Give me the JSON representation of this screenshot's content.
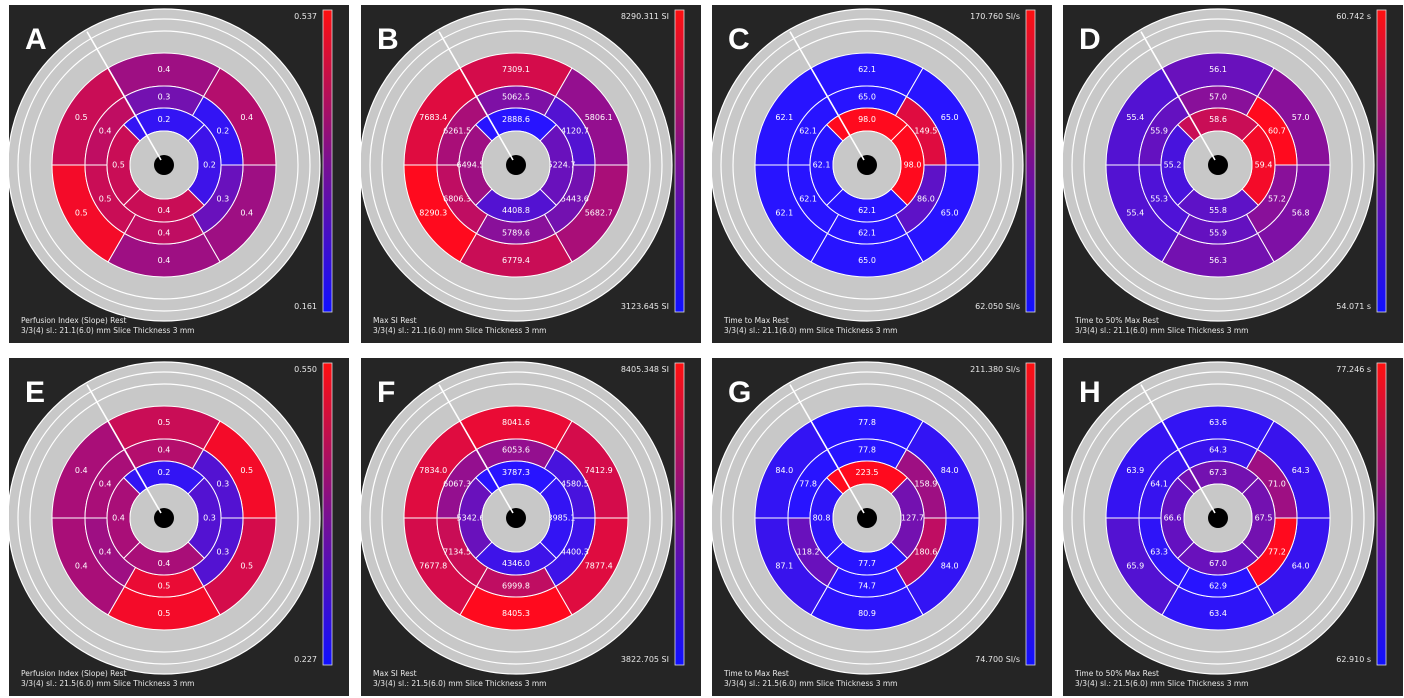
{
  "chart_data": [
    {
      "type": "heatmap",
      "letter": "A",
      "cbar_max": "0.537",
      "cbar_min": "0.161",
      "footer_line1": "Perfusion Index (Slope) Rest",
      "footer_line2": "3/3(4) sl.: 21.1(6.0) mm Slice Thickness 3 mm",
      "outer": [
        "0.4",
        "0.4",
        "0.4",
        "0.4",
        "0.5",
        "0.5"
      ],
      "mid": [
        "0.3",
        "0.2",
        "0.3",
        "0.4",
        "0.5",
        "0.4"
      ],
      "inner": [
        "0.2",
        "0.2",
        "0.4",
        "0.5"
      ],
      "outer_c": [
        0.55,
        0.65,
        0.55,
        0.55,
        0.95,
        0.75
      ],
      "mid_c": [
        0.35,
        0.05,
        0.3,
        0.7,
        0.75,
        0.7
      ],
      "inner_c": [
        0.05,
        0.1,
        0.75,
        0.75
      ]
    },
    {
      "type": "heatmap",
      "letter": "B",
      "cbar_max": "8290.311 SI",
      "cbar_min": "3123.645 SI",
      "footer_line1": "Max SI Rest",
      "footer_line2": "3/3(4) sl.: 21.1(6.0) mm Slice Thickness 3 mm",
      "outer": [
        "7309.1",
        "5806.1",
        "5682.7",
        "6779.4",
        "8290.3",
        "7683.4"
      ],
      "mid": [
        "5062.5",
        "4120.7",
        "5443.6",
        "5789.6",
        "6806.3",
        "6261.5"
      ],
      "inner": [
        "2888.6",
        "5224.7",
        "4408.8",
        "6494.5"
      ],
      "outer_c": [
        0.8,
        0.5,
        0.6,
        0.75,
        1.0,
        0.85
      ],
      "mid_c": [
        0.4,
        0.2,
        0.35,
        0.45,
        0.7,
        0.6
      ],
      "inner_c": [
        0.0,
        0.3,
        0.2,
        0.55
      ]
    },
    {
      "type": "heatmap",
      "letter": "C",
      "cbar_max": "170.760 SI/s",
      "cbar_min": "62.050 SI/s",
      "footer_line1": "Time to Max Rest",
      "footer_line2": "3/3(4) sl.: 21.1(6.0) mm Slice Thickness 3 mm",
      "outer": [
        "62.1",
        "65.0",
        "65.0",
        "65.0",
        "62.1",
        "62.1"
      ],
      "mid": [
        "65.0",
        "149.5",
        "86.0",
        "62.1",
        "62.1",
        "62.1"
      ],
      "inner": [
        "98.0",
        "98.0",
        "62.1",
        "62.1"
      ],
      "outer_c": [
        0.0,
        0.0,
        0.0,
        0.0,
        0.0,
        0.0
      ],
      "mid_c": [
        0.0,
        0.85,
        0.25,
        0.0,
        0.0,
        0.0
      ],
      "inner_c": [
        1.0,
        1.0,
        0.0,
        0.0
      ]
    },
    {
      "type": "heatmap",
      "letter": "D",
      "cbar_max": "60.742 s",
      "cbar_min": "54.071 s",
      "footer_line1": "Time to 50% Max Rest",
      "footer_line2": "3/3(4) sl.: 21.1(6.0) mm Slice Thickness 3 mm",
      "outer": [
        "56.1",
        "57.0",
        "56.8",
        "56.3",
        "55.4",
        "55.4"
      ],
      "mid": [
        "57.0",
        "60.7",
        "57.2",
        "55.9",
        "55.3",
        "55.9"
      ],
      "inner": [
        "58.6",
        "59.4",
        "55.8",
        "55.2"
      ],
      "outer_c": [
        0.3,
        0.45,
        0.4,
        0.35,
        0.2,
        0.2
      ],
      "mid_c": [
        0.45,
        1.0,
        0.45,
        0.28,
        0.18,
        0.28
      ],
      "inner_c": [
        0.75,
        0.95,
        0.25,
        0.15
      ]
    },
    {
      "type": "heatmap",
      "letter": "E",
      "cbar_max": "0.550",
      "cbar_min": "0.227",
      "footer_line1": "Perfusion Index (Slope) Rest",
      "footer_line2": "3/3(4) sl.: 21.5(6.0) mm Slice Thickness 3 mm",
      "outer": [
        "0.5",
        "0.5",
        "0.5",
        "0.5",
        "0.4",
        "0.4"
      ],
      "mid": [
        "0.4",
        "0.3",
        "0.3",
        "0.5",
        "0.4",
        "0.4"
      ],
      "inner": [
        "0.2",
        "0.3",
        "0.4",
        "0.4"
      ],
      "outer_c": [
        0.75,
        0.95,
        0.8,
        0.95,
        0.6,
        0.6
      ],
      "mid_c": [
        0.65,
        0.2,
        0.2,
        0.9,
        0.55,
        0.6
      ],
      "inner_c": [
        0.05,
        0.2,
        0.6,
        0.6
      ]
    },
    {
      "type": "heatmap",
      "letter": "F",
      "cbar_max": "8405.348 SI",
      "cbar_min": "3822.705 SI",
      "footer_line1": "Max SI Rest",
      "footer_line2": "3/3(4) sl.: 21.5(6.0) mm Slice Thickness 3 mm",
      "outer": [
        "8041.6",
        "7412.9",
        "7877.4",
        "8405.3",
        "7677.8",
        "7834.0"
      ],
      "mid": [
        "6053.6",
        "4580.5",
        "4400.3",
        "6999.8",
        "7134.5",
        "6067.3"
      ],
      "inner": [
        "3787.3",
        "3985.1",
        "4346.0",
        "5342.6"
      ],
      "outer_c": [
        0.9,
        0.8,
        0.85,
        1.0,
        0.8,
        0.85
      ],
      "mid_c": [
        0.5,
        0.15,
        0.1,
        0.7,
        0.75,
        0.5
      ],
      "inner_c": [
        0.0,
        0.05,
        0.1,
        0.3
      ]
    },
    {
      "type": "heatmap",
      "letter": "G",
      "cbar_max": "211.380 SI/s",
      "cbar_min": "74.700 SI/s",
      "footer_line1": "Time to Max Rest",
      "footer_line2": "3/3(4) sl.: 21.5(6.0) mm Slice Thickness 3 mm",
      "outer": [
        "77.8",
        "84.0",
        "84.0",
        "80.9",
        "87.1",
        "84.0"
      ],
      "mid": [
        "77.8",
        "158.9",
        "180.6",
        "74.7",
        "118.2",
        "77.8"
      ],
      "inner": [
        "223.5",
        "127.7",
        "77.7",
        "80.8"
      ],
      "outer_c": [
        0.0,
        0.05,
        0.05,
        0.02,
        0.08,
        0.05
      ],
      "mid_c": [
        0.0,
        0.55,
        0.7,
        0.0,
        0.3,
        0.0
      ],
      "inner_c": [
        1.0,
        0.35,
        0.0,
        0.03
      ]
    },
    {
      "type": "heatmap",
      "letter": "H",
      "cbar_max": "77.246 s",
      "cbar_min": "62.910 s",
      "footer_line1": "Time to 50% Max Rest",
      "footer_line2": "3/3(4) sl.: 21.5(6.0) mm Slice Thickness 3 mm",
      "outer": [
        "63.6",
        "64.3",
        "64.0",
        "63.4",
        "65.9",
        "63.9"
      ],
      "mid": [
        "64.3",
        "71.0",
        "77.2",
        "62.9",
        "63.3",
        "64.1"
      ],
      "inner": [
        "67.3",
        "67.5",
        "67.0",
        "66.6"
      ],
      "outer_c": [
        0.05,
        0.08,
        0.07,
        0.03,
        0.2,
        0.06
      ],
      "mid_c": [
        0.08,
        0.55,
        1.0,
        0.0,
        0.03,
        0.07
      ],
      "inner_c": [
        0.35,
        0.35,
        0.3,
        0.28
      ]
    }
  ]
}
